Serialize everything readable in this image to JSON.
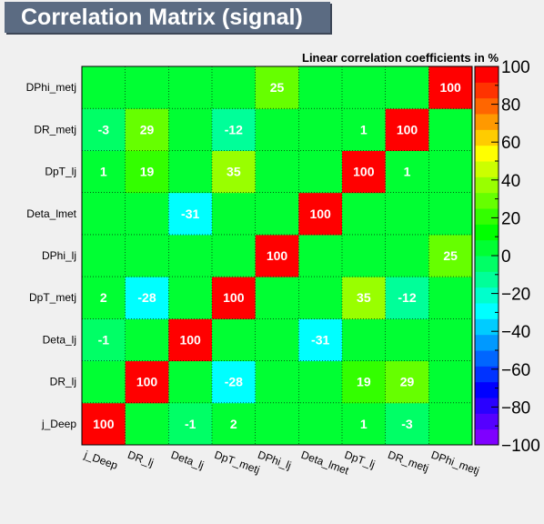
{
  "title": "Correlation Matrix (signal)",
  "chart_data": {
    "type": "heatmap",
    "title": "Linear correlation coefficients in %",
    "x_labels": [
      "j_Deep",
      "DR_lj",
      "Deta_lj",
      "DpT_metj",
      "DPhi_lj",
      "Deta_lmet",
      "DpT_lj",
      "DR_metj",
      "DPhi_metj"
    ],
    "y_labels": [
      "j_Deep",
      "DR_lj",
      "Deta_lj",
      "DpT_metj",
      "DPhi_lj",
      "Deta_lmet",
      "DpT_lj",
      "DR_metj",
      "DPhi_metj"
    ],
    "matrix": [
      [
        100,
        0,
        -1,
        2,
        0,
        0,
        1,
        -3,
        0
      ],
      [
        0,
        100,
        0,
        -28,
        0,
        0,
        19,
        29,
        0
      ],
      [
        -1,
        0,
        100,
        0,
        0,
        -31,
        0,
        0,
        0
      ],
      [
        2,
        -28,
        0,
        100,
        0,
        0,
        35,
        -12,
        0
      ],
      [
        0,
        0,
        0,
        0,
        100,
        0,
        0,
        0,
        25
      ],
      [
        0,
        0,
        -31,
        0,
        0,
        100,
        0,
        0,
        0
      ],
      [
        1,
        19,
        0,
        35,
        0,
        0,
        100,
        1,
        0
      ],
      [
        -3,
        29,
        0,
        -12,
        0,
        0,
        1,
        100,
        0
      ],
      [
        0,
        0,
        0,
        0,
        25,
        0,
        0,
        0,
        100
      ]
    ],
    "zlim": [
      -100,
      100
    ],
    "colorbar_ticks": [
      -100,
      -80,
      -60,
      -40,
      -20,
      0,
      20,
      40,
      60,
      80,
      100
    ],
    "colorbar_tick_labels": [
      "−100",
      "−80",
      "−60",
      "−40",
      "−20",
      "0",
      "20",
      "40",
      "60",
      "80",
      "100"
    ],
    "grid": true,
    "palette": [
      "#7f00ff",
      "#5500ff",
      "#2a00ff",
      "#0000ff",
      "#0033ff",
      "#0066ff",
      "#0099ff",
      "#00ccff",
      "#00ffff",
      "#00ffcc",
      "#00ff99",
      "#00ff66",
      "#00ff33",
      "#00ff00",
      "#33ff00",
      "#66ff00",
      "#99ff00",
      "#ccff00",
      "#ffff00",
      "#ffcc00",
      "#ff9900",
      "#ff6600",
      "#ff3300",
      "#ff0000"
    ]
  }
}
